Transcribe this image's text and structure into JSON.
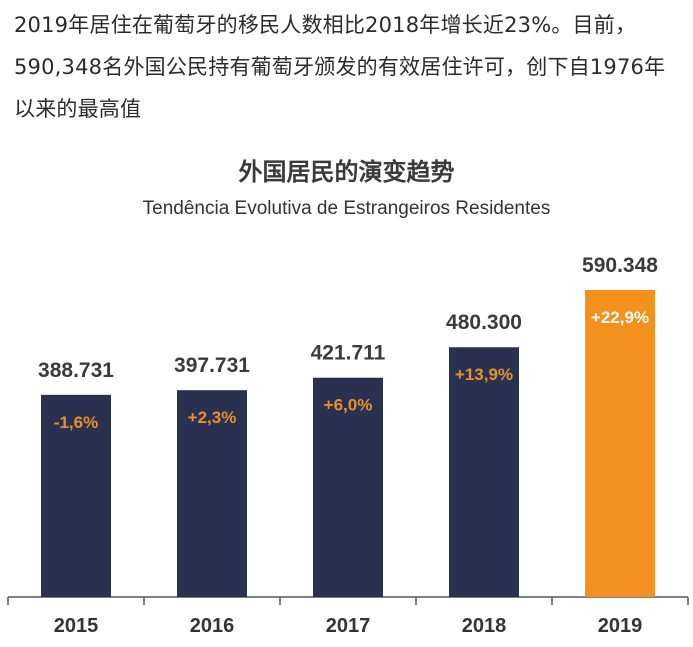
{
  "intro": {
    "text": "2019年居住在葡萄牙的移民人数相比2018年增长近23%。目前，590,348名外国公民持有葡萄牙颁发的有效居住许可，创下自1976年以来的最高值"
  },
  "colors": {
    "bar_default": "#2a3150",
    "bar_highlight": "#f3901e",
    "change_label_default": "#e6912a",
    "change_label_highlight": "#ffffff",
    "axis": "#555555"
  },
  "chart_data": {
    "type": "bar",
    "title": "外国居民的演变趋势",
    "subtitle": "Tendência Evolutiva de Estrangeiros Residentes",
    "categories": [
      "2015",
      "2016",
      "2017",
      "2018",
      "2019"
    ],
    "values": [
      388731,
      397731,
      421711,
      480300,
      590348
    ],
    "value_labels": [
      "388.731",
      "397.731",
      "421.711",
      "480.300",
      "590.348"
    ],
    "change_labels": [
      "-1,6%",
      "+2,3%",
      "+6,0%",
      "+13,9%",
      "+22,9%"
    ],
    "highlight_index": 4,
    "ylim": [
      0,
      620000
    ],
    "xlabel": "",
    "ylabel": "",
    "grid": false,
    "legend": "none"
  }
}
